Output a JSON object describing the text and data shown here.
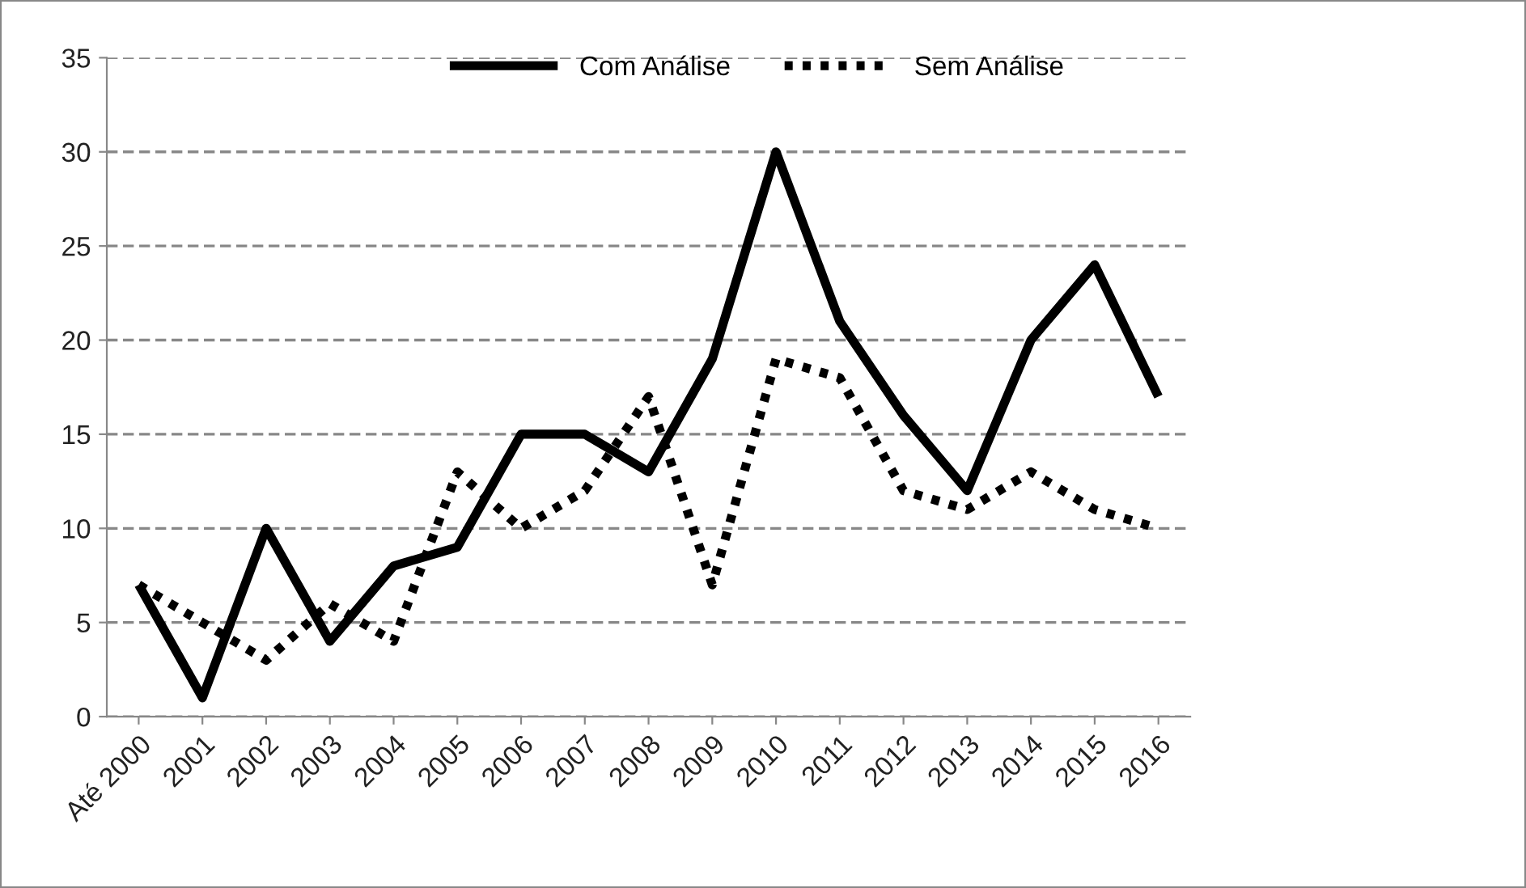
{
  "chart_data": {
    "type": "line",
    "categories": [
      "Até 2000",
      "2001",
      "2002",
      "2003",
      "2004",
      "2005",
      "2006",
      "2007",
      "2008",
      "2009",
      "2010",
      "2011",
      "2012",
      "2013",
      "2014",
      "2015",
      "2016"
    ],
    "series": [
      {
        "name": "Com Análise",
        "color": "#000000",
        "line_style": "solid",
        "values": [
          7,
          1,
          10,
          4,
          8,
          9,
          15,
          15,
          13,
          19,
          30,
          21,
          16,
          12,
          20,
          24,
          17
        ]
      },
      {
        "name": "Sem Análise",
        "color": "#000000",
        "line_style": "dotted",
        "values": [
          7,
          5,
          3,
          6,
          4,
          13,
          10,
          12,
          17,
          7,
          19,
          18,
          12,
          11,
          13,
          11,
          10
        ]
      }
    ],
    "ylim": [
      0,
      35
    ],
    "yticks": [
      0,
      5,
      10,
      15,
      20,
      25,
      30,
      35
    ],
    "grid": "y",
    "legend": "top",
    "marker": "none"
  }
}
